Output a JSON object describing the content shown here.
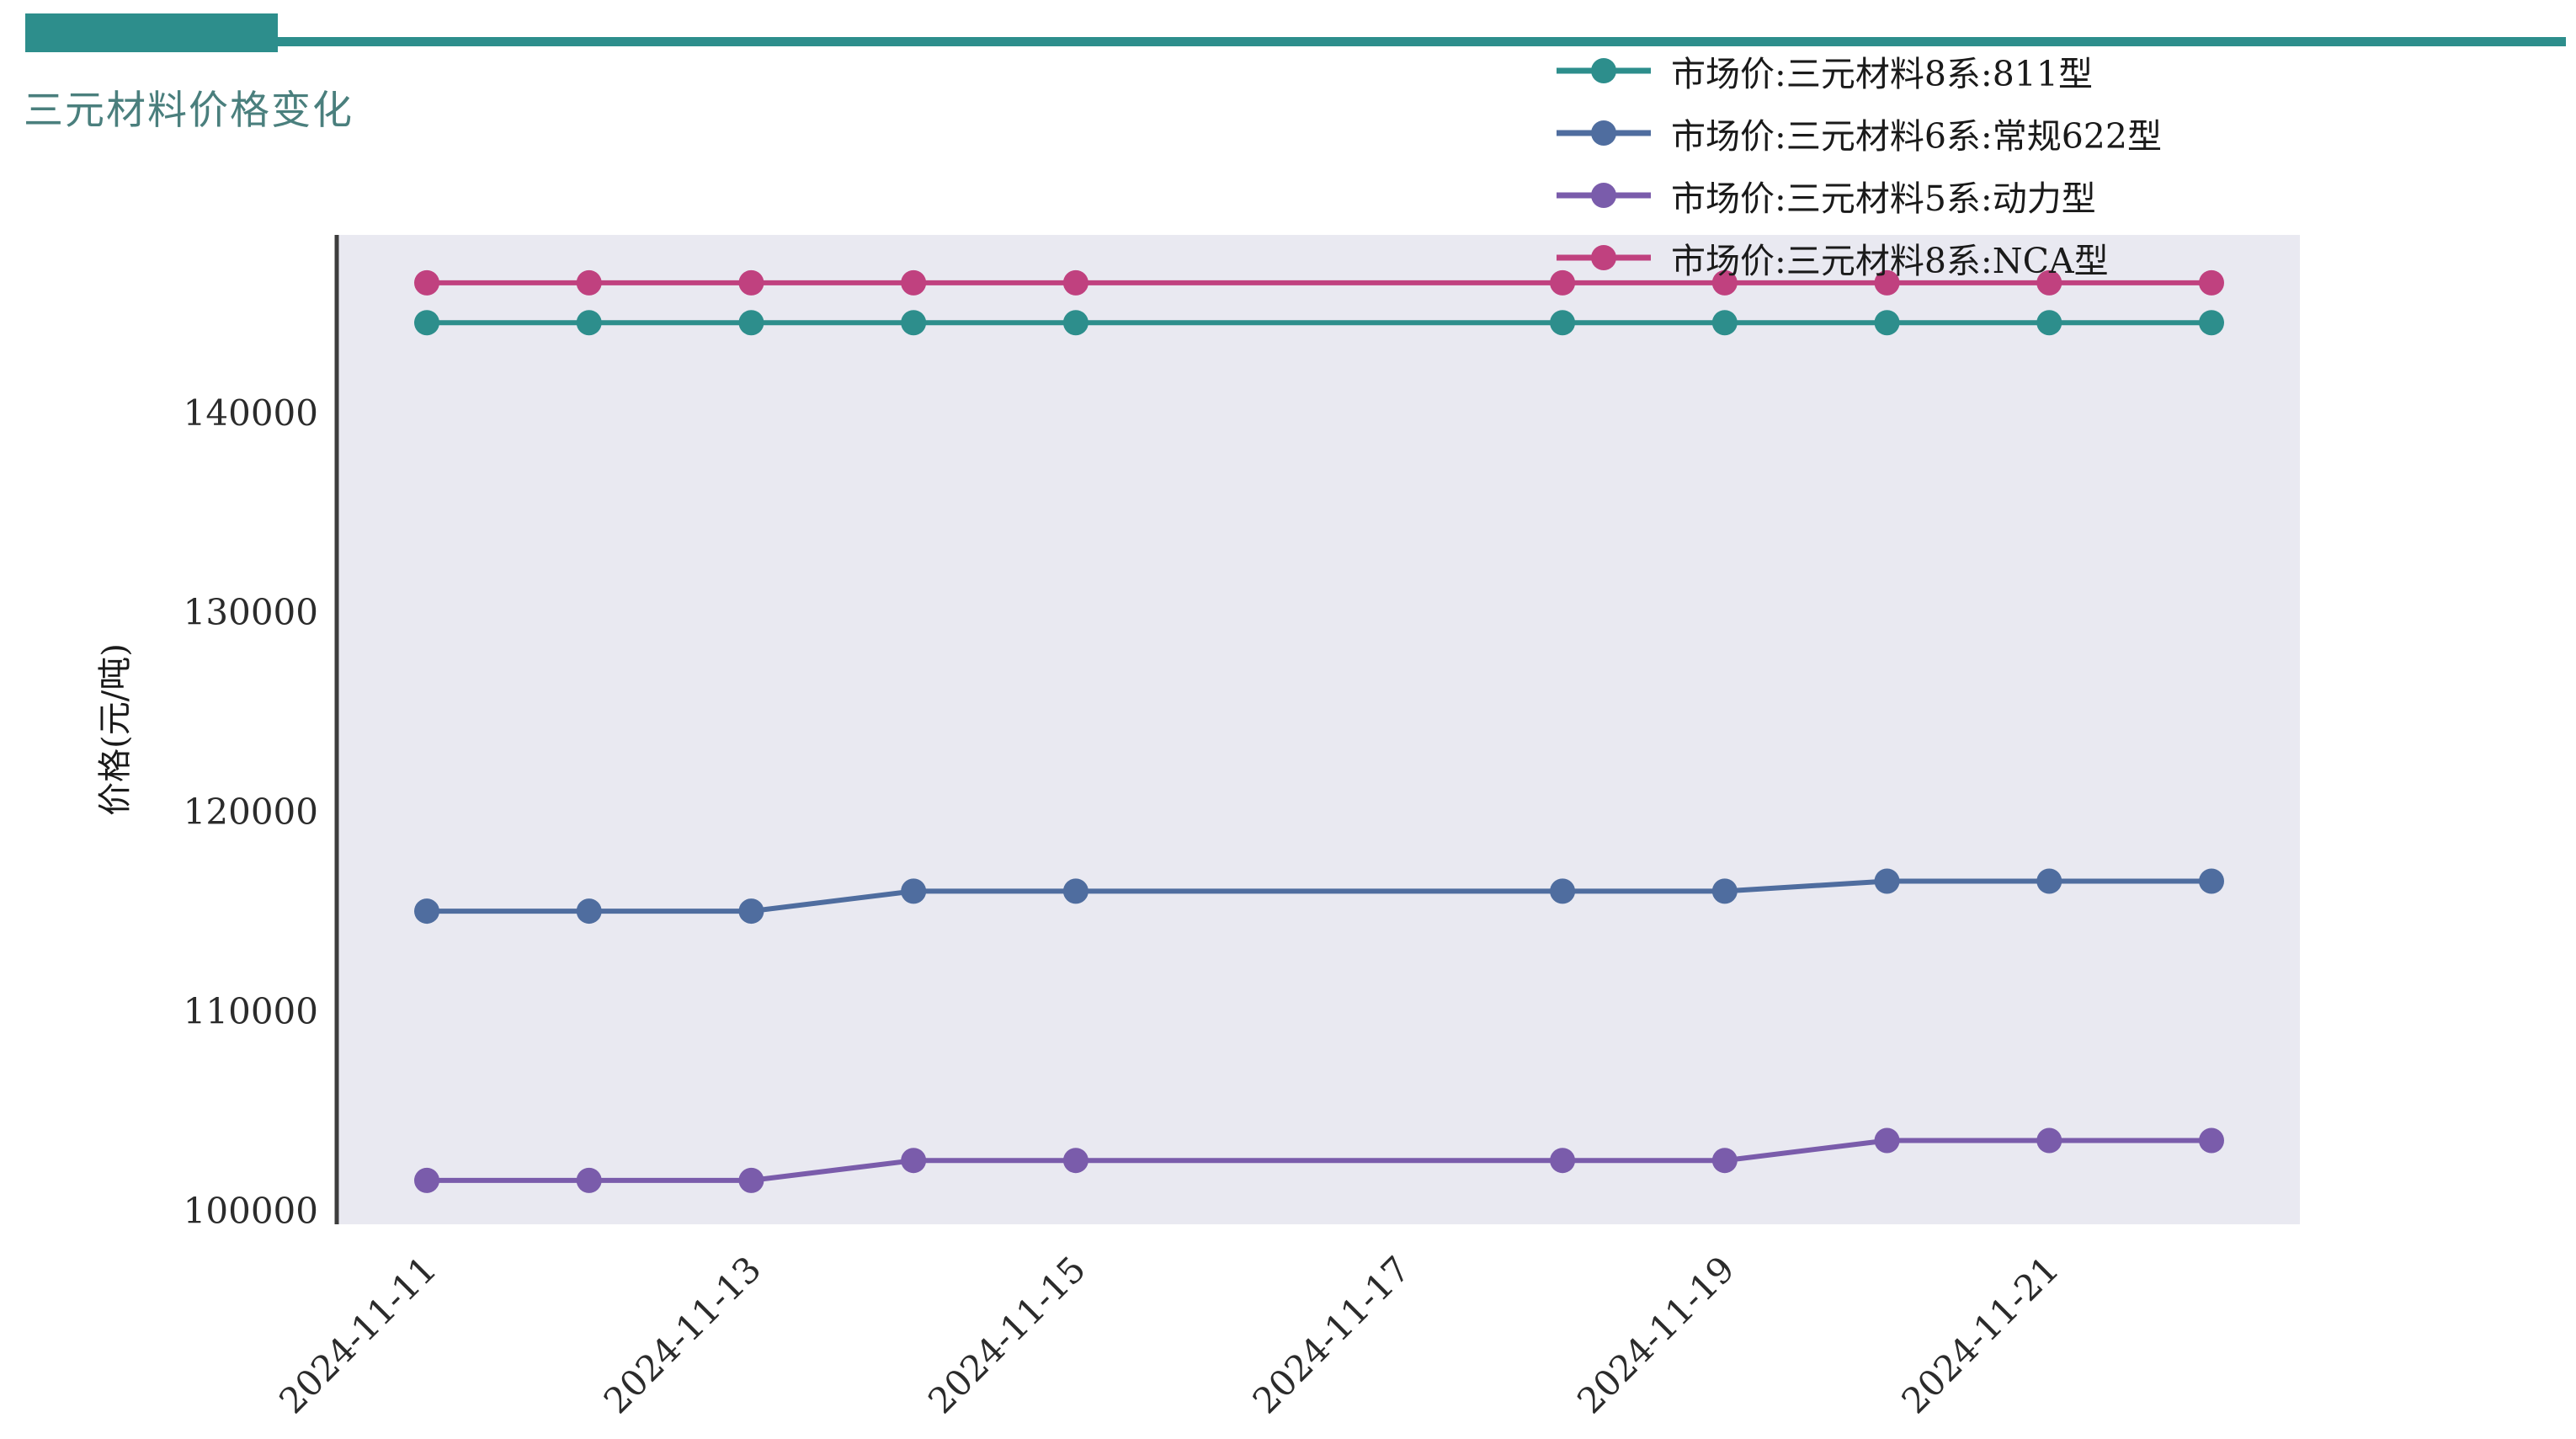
{
  "header": {
    "title": "三元材料价格变化",
    "title_color": "#4a7f7d",
    "accent_color": "#2d8e8c"
  },
  "chart_data": {
    "type": "line",
    "title": "三元材料价格变化",
    "xlabel": "",
    "ylabel": "价格(元/吨)",
    "x": [
      "2024-11-11",
      "2024-11-12",
      "2024-11-13",
      "2024-11-14",
      "2024-11-15",
      "2024-11-18",
      "2024-11-19",
      "2024-11-20",
      "2024-11-21",
      "2024-11-22"
    ],
    "series": [
      {
        "name": "市场价:三元材料8系:811型",
        "color": "#2d8e8c",
        "values": [
          144500,
          144500,
          144500,
          144500,
          144500,
          144500,
          144500,
          144500,
          144500,
          144500
        ]
      },
      {
        "name": "市场价:三元材料6系:常规622型",
        "color": "#4f6d9f",
        "values": [
          115000,
          115000,
          115000,
          116000,
          116000,
          116000,
          116000,
          116500,
          116500,
          116500
        ]
      },
      {
        "name": "市场价:三元材料5系:动力型",
        "color": "#7a5cab",
        "values": [
          101500,
          101500,
          101500,
          102500,
          102500,
          102500,
          102500,
          103500,
          103500,
          103500
        ]
      },
      {
        "name": "市场价:三元材料8系:NCA型",
        "color": "#c0417f",
        "values": [
          146500,
          146500,
          146500,
          146500,
          146500,
          146500,
          146500,
          146500,
          146500,
          146500
        ]
      }
    ],
    "yticks": [
      100000,
      110000,
      120000,
      130000,
      140000
    ],
    "xtick_labels": [
      "2024-11-11",
      "2024-11-13",
      "2024-11-15",
      "2024-11-17",
      "2024-11-19",
      "2024-11-21"
    ],
    "ylim": [
      99300,
      148900
    ],
    "grid": false,
    "legend_position": "top-right",
    "plot_background": "#e9e9f1",
    "axis_spine_color": "#3d3d3d",
    "tick_label_color": "#2b2b2b"
  }
}
